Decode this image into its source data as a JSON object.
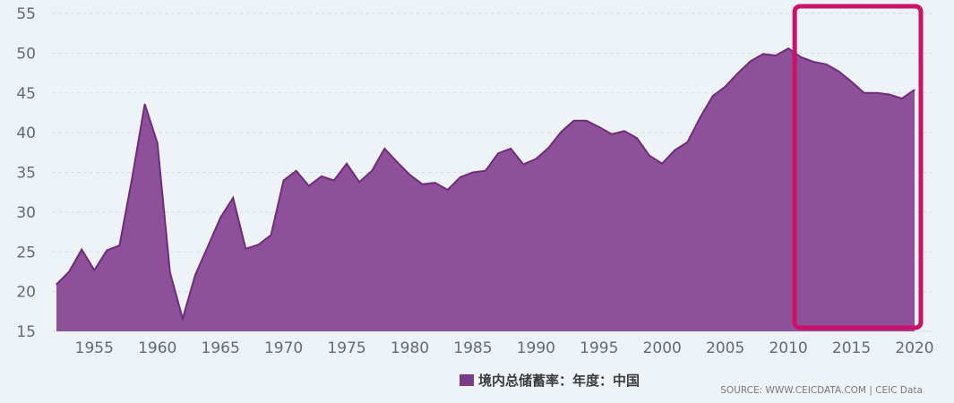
{
  "chart_data": {
    "type": "area",
    "xlim": [
      1952,
      2020
    ],
    "ylim": [
      15,
      55
    ],
    "y_ticks": [
      15,
      20,
      25,
      30,
      35,
      40,
      45,
      50,
      55
    ],
    "y_tick_labels": [
      "15",
      "20",
      "25",
      "30",
      "35",
      "40",
      "45",
      "50",
      "55"
    ],
    "x_ticks": [
      1955,
      1960,
      1965,
      1970,
      1975,
      1980,
      1985,
      1990,
      1995,
      2000,
      2005,
      2010,
      2015,
      2020
    ],
    "x_tick_labels": [
      "1955",
      "1960",
      "1965",
      "1970",
      "1975",
      "1980",
      "1985",
      "1990",
      "1995",
      "2000",
      "2005",
      "2010",
      "2015",
      "2020"
    ],
    "grid": "horizontal dashed",
    "legend_position": "bottom-center",
    "series": [
      {
        "name": "境内总储蓄率：年度：中国",
        "color": "#7a3b87",
        "x": [
          1952,
          1953,
          1954,
          1955,
          1956,
          1957,
          1958,
          1959,
          1960,
          1961,
          1962,
          1963,
          1964,
          1965,
          1966,
          1967,
          1968,
          1969,
          1970,
          1971,
          1972,
          1973,
          1974,
          1975,
          1976,
          1977,
          1978,
          1979,
          1980,
          1981,
          1982,
          1983,
          1984,
          1985,
          1986,
          1987,
          1988,
          1989,
          1990,
          1991,
          1992,
          1993,
          1994,
          1995,
          1996,
          1997,
          1998,
          1999,
          2000,
          2001,
          2002,
          2003,
          2004,
          2005,
          2006,
          2007,
          2008,
          2009,
          2010,
          2011,
          2012,
          2013,
          2014,
          2015,
          2016,
          2017,
          2018,
          2019,
          2020
        ],
        "values": [
          20.9,
          22.5,
          25.3,
          22.7,
          25.2,
          25.8,
          34.3,
          43.6,
          38.7,
          22.4,
          16.6,
          22.1,
          25.7,
          29.3,
          31.8,
          25.4,
          25.9,
          27.1,
          34.0,
          35.2,
          33.3,
          34.5,
          34.0,
          36.1,
          33.8,
          35.2,
          38.0,
          36.3,
          34.7,
          33.5,
          33.7,
          32.8,
          34.4,
          35.0,
          35.2,
          37.4,
          38.0,
          36.0,
          36.7,
          38.1,
          40.1,
          41.5,
          41.5,
          40.7,
          39.8,
          40.2,
          39.3,
          37.1,
          36.1,
          37.8,
          38.8,
          41.9,
          44.6,
          45.8,
          47.5,
          49.0,
          49.9,
          49.7,
          50.6,
          49.5,
          48.9,
          48.6,
          47.7,
          46.4,
          45.0,
          45.0,
          44.8,
          44.3,
          45.4
        ]
      }
    ]
  },
  "legend": {
    "label": "境内总储蓄率：年度：中国",
    "color": "#7a3b87"
  },
  "source_text": "SOURCE: WWW.CEICDATA.COM | CEIC Data",
  "highlight": {
    "color": "#cc1168",
    "x_range": [
      2010.5,
      2020
    ]
  },
  "colors": {
    "area_fill": "#8e5199",
    "area_stroke": "#6e2c7c",
    "grid": "#d7dee6",
    "background": "#eef3f7"
  }
}
